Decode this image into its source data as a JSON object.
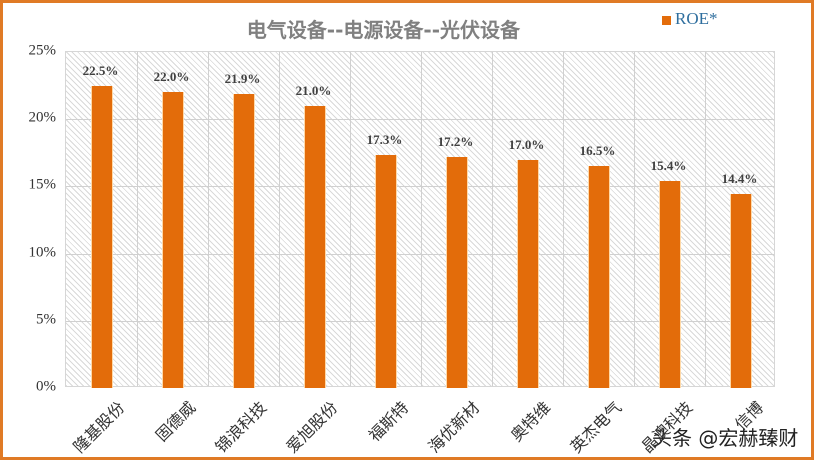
{
  "title": "电气设备--电源设备--光伏设备",
  "legend": {
    "label": "ROE*",
    "color": "#e36c0a"
  },
  "watermark": "头条 @宏赫臻财",
  "y_ticks": [
    "0%",
    "5%",
    "10%",
    "15%",
    "20%",
    "25%"
  ],
  "chart_data": {
    "type": "bar",
    "title": "电气设备--电源设备--光伏设备",
    "xlabel": "",
    "ylabel": "",
    "ylim": [
      0,
      25
    ],
    "y_tick_labels": [
      "0%",
      "5%",
      "10%",
      "15%",
      "20%",
      "25%"
    ],
    "grid": true,
    "legend_position": "top-right",
    "categories": [
      "隆基股份",
      "固德威",
      "锦浪科技",
      "爱旭股份",
      "福斯特",
      "海优新材",
      "奥特维",
      "英杰电气",
      "晶澳科技",
      "信博"
    ],
    "series": [
      {
        "name": "ROE*",
        "color": "#e36c0a",
        "values": [
          22.5,
          22.0,
          21.9,
          21.0,
          17.3,
          17.2,
          17.0,
          16.5,
          15.4,
          14.4
        ],
        "labels": [
          "22.5%",
          "22.0%",
          "21.9%",
          "21.0%",
          "17.3%",
          "17.2%",
          "17.0%",
          "16.5%",
          "15.4%",
          "14.4%"
        ]
      }
    ]
  }
}
